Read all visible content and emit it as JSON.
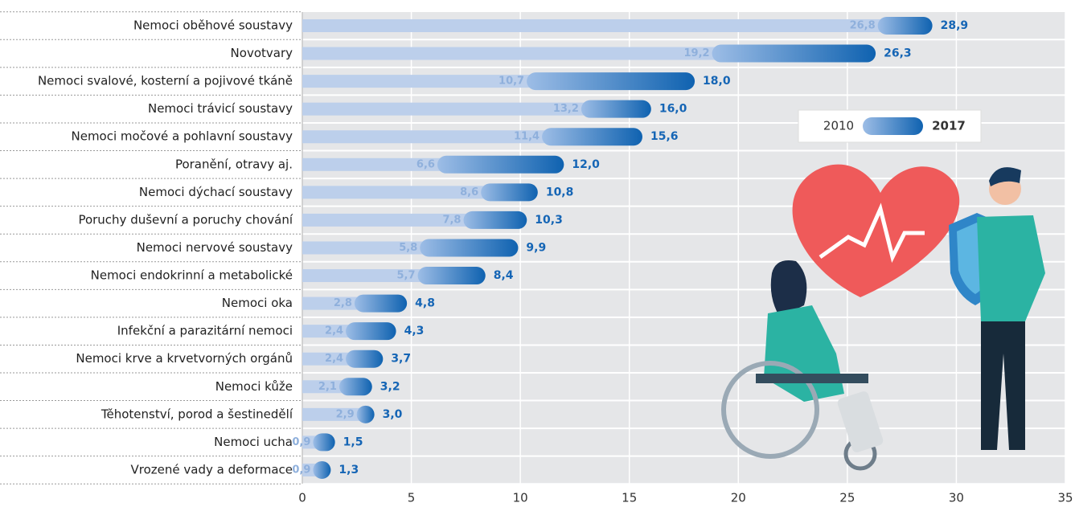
{
  "chart_data": {
    "type": "bar",
    "categories": [
      "Nemoci oběhové soustavy",
      "Novotvary",
      "Nemoci svalové, kosterní a pojivové tkáně",
      "Nemoci trávicí soustavy",
      "Nemoci močové a pohlavní soustavy",
      "Poranění, otravy aj.",
      "Nemoci dýchací soustavy",
      "Poruchy duševní a poruchy chování",
      "Nemoci nervové soustavy",
      "Nemoci endokrinní a metabolické",
      "Nemoci oka",
      "Infekční a parazitární nemoci",
      "Nemoci krve a krvetvorných orgánů",
      "Nemoci kůže",
      "Těhotenství, porod a šestinedělí",
      "Nemoci ucha",
      "Vrozené vady a deformace"
    ],
    "series": [
      {
        "name": "2010",
        "color": "#bccfeb",
        "values": [
          26.8,
          19.2,
          10.7,
          13.2,
          11.4,
          6.6,
          8.6,
          7.8,
          5.8,
          5.7,
          2.8,
          2.4,
          2.4,
          2.1,
          2.9,
          0.9,
          0.9
        ],
        "value_labels": [
          "26,8",
          "19,2",
          "10,7",
          "13,2",
          "11,4",
          "6,6",
          "8,6",
          "7,8",
          "5,8",
          "5,7",
          "2,8",
          "2,4",
          "2,4",
          "2,1",
          "2,9",
          "0,9",
          "0,9"
        ]
      },
      {
        "name": "2017",
        "color": "#1565b5",
        "values": [
          28.9,
          26.3,
          18.0,
          16.0,
          15.6,
          12.0,
          10.8,
          10.3,
          9.9,
          8.4,
          4.8,
          4.3,
          3.7,
          3.2,
          3.0,
          1.5,
          1.3
        ],
        "value_labels": [
          "28,9",
          "26,3",
          "18,0",
          "16,0",
          "15,6",
          "12,0",
          "10,8",
          "10,3",
          "9,9",
          "8,4",
          "4,8",
          "4,3",
          "3,7",
          "3,2",
          "3,0",
          "1,5",
          "1,3"
        ]
      }
    ],
    "xlim": [
      0,
      35
    ],
    "xticks": [
      0,
      5,
      10,
      15,
      20,
      25,
      30,
      35
    ],
    "grid": true
  }
}
